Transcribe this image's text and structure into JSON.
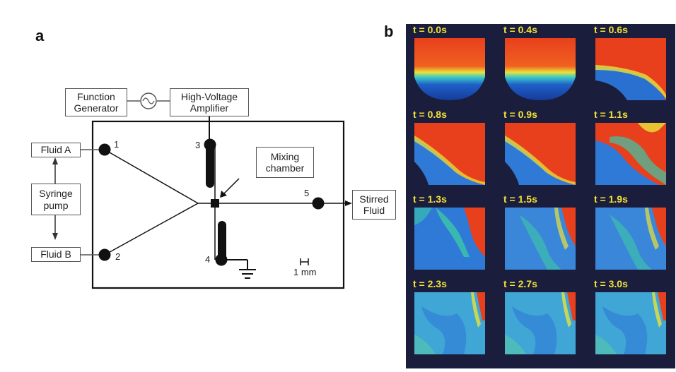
{
  "panel_a": {
    "letter": "a",
    "function_generator": "Function\nGenerator",
    "amplifier": "High-Voltage\nAmplifier",
    "fluid_a": "Fluid A",
    "fluid_b": "Fluid B",
    "syringe_pump": "Syringe\npump",
    "mixing_chamber": "Mixing\nchamber",
    "stirred_fluid": "Stirred\nFluid",
    "ports": [
      "1",
      "2",
      "3",
      "4",
      "5"
    ],
    "scale_label": "1 mm"
  },
  "panel_b": {
    "letter": "b",
    "frames": [
      {
        "label": "t = 0.0s",
        "stage": 0
      },
      {
        "label": "t = 0.4s",
        "stage": 0
      },
      {
        "label": "t = 0.6s",
        "stage": 1
      },
      {
        "label": "t = 0.8s",
        "stage": 2
      },
      {
        "label": "t = 0.9s",
        "stage": 2
      },
      {
        "label": "t = 1.1s",
        "stage": 3
      },
      {
        "label": "t = 1.3s",
        "stage": 4
      },
      {
        "label": "t = 1.5s",
        "stage": 5
      },
      {
        "label": "t = 1.9s",
        "stage": 5
      },
      {
        "label": "t = 2.3s",
        "stage": 6
      },
      {
        "label": "t = 2.7s",
        "stage": 6
      },
      {
        "label": "t = 3.0s",
        "stage": 6
      }
    ],
    "colors": {
      "background": "#1a1d3c",
      "caption": "#f2e237",
      "hot": "#e8401c",
      "cold": "#1f5fc8"
    }
  }
}
